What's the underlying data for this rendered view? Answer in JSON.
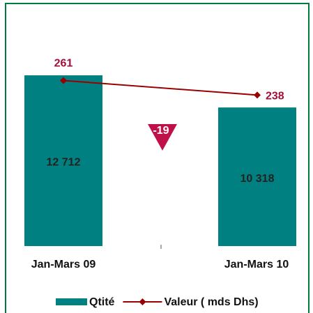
{
  "chart_data": {
    "type": "bar",
    "categories": [
      "Jan-Mars 09",
      "Jan-Mars 10"
    ],
    "series": [
      {
        "name": "Qtité",
        "type": "bar",
        "color": "#008080",
        "values": [
          12712,
          10318
        ],
        "value_labels": [
          "12 712",
          "10 318"
        ]
      },
      {
        "name": "Valeur ( mds Dhs)",
        "type": "line",
        "axis": "y2",
        "color": "#990000",
        "values": [
          261,
          238
        ]
      }
    ],
    "ylim": [
      0,
      17000
    ],
    "y2lim": [
      0,
      360
    ],
    "annotation": "-19",
    "legend": "bottom"
  }
}
